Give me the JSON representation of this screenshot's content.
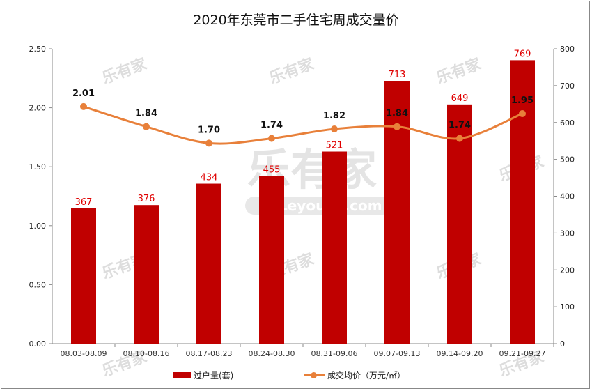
{
  "chart_data": {
    "type": "bar+line",
    "title": "2020年东莞市二手住宅周成交量价",
    "categories": [
      "08.03-08.09",
      "08.10-08.16",
      "08.17-08.23",
      "08.24-08.30",
      "08.31-09.06",
      "09.07-09.13",
      "09.14-09.20",
      "09.21-09.27"
    ],
    "series": [
      {
        "name": "过户量(套)",
        "type": "bar",
        "axis": "right",
        "color": "#c00000",
        "values": [
          367,
          376,
          434,
          455,
          521,
          713,
          649,
          769
        ]
      },
      {
        "name": "成交均价（万元/㎡）",
        "type": "line",
        "axis": "left",
        "color": "#e8803a",
        "values": [
          2.01,
          1.84,
          1.7,
          1.74,
          1.82,
          1.84,
          1.74,
          1.95
        ]
      }
    ],
    "y_left": {
      "range": [
        0,
        2.5
      ],
      "ticks": [
        "0.00",
        "0.50",
        "1.00",
        "1.50",
        "2.00",
        "2.50"
      ]
    },
    "y_right": {
      "range": [
        0,
        800
      ],
      "ticks": [
        "0",
        "100",
        "200",
        "300",
        "400",
        "500",
        "600",
        "700",
        "800"
      ]
    },
    "grid": false,
    "legend_position": "bottom",
    "watermark": "乐有家 Leyoujia.com"
  }
}
